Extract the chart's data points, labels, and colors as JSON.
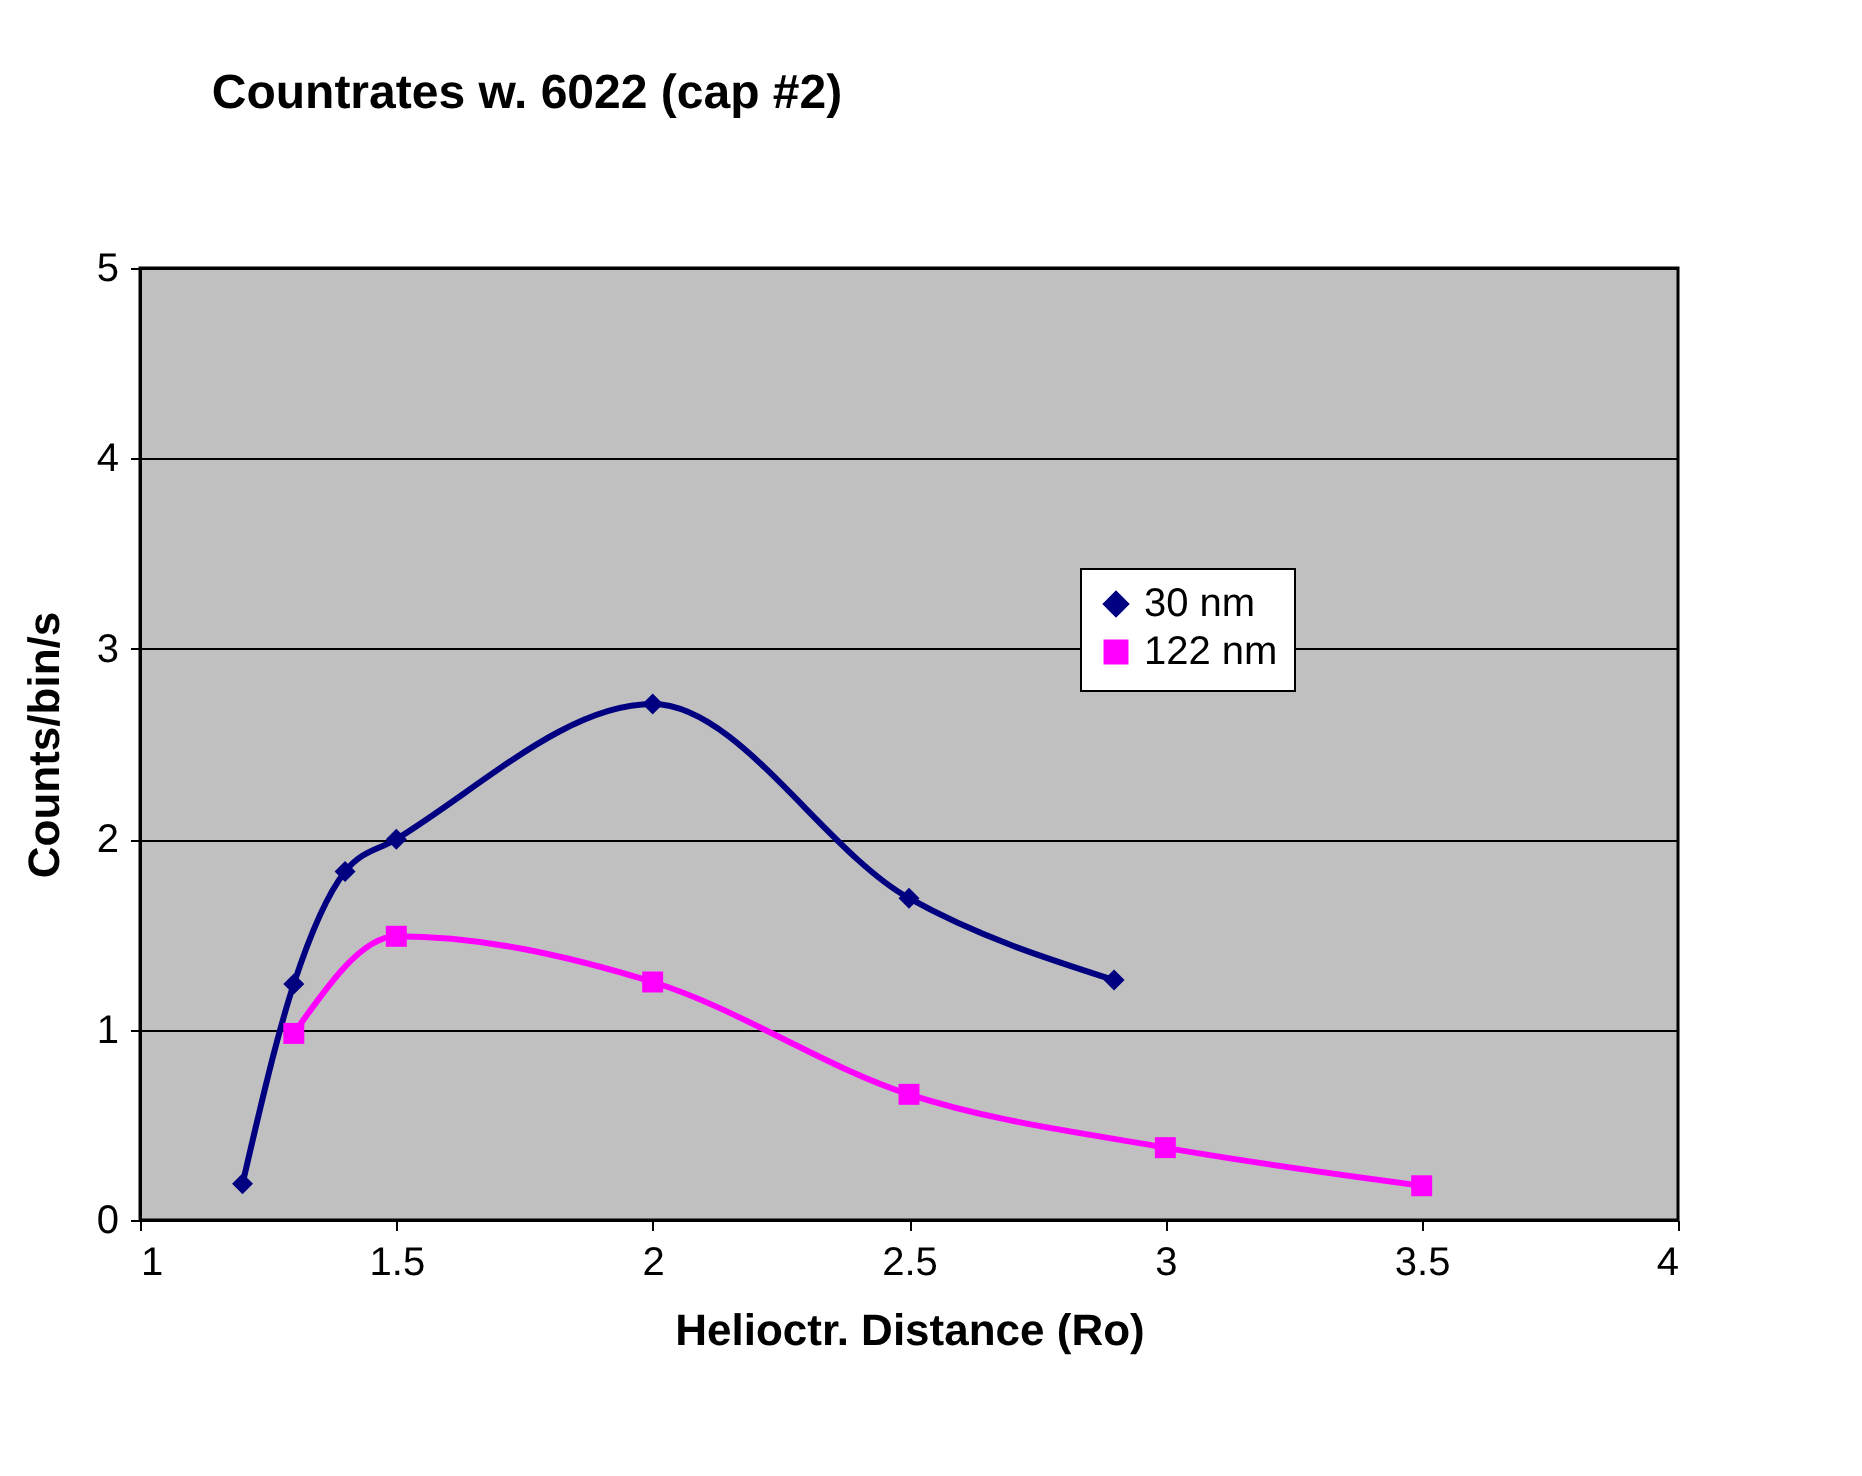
{
  "chart_data": {
    "type": "line",
    "title": "Countrates w. 6022 (cap #2)",
    "xlabel": "Helioctr. Distance (Ro)",
    "ylabel": "Counts/bin/s",
    "xlim": [
      1,
      4
    ],
    "xticks": [
      1,
      1.5,
      2,
      2.5,
      3,
      3.5,
      4
    ],
    "ylim": [
      0,
      5
    ],
    "yticks": [
      0,
      1,
      2,
      3,
      4,
      5
    ],
    "grid": "y",
    "legend": "right",
    "series": [
      {
        "name": "30 nm",
        "color": "#000080",
        "marker": "diamond",
        "x": [
          1.2,
          1.3,
          1.4,
          1.5,
          2.0,
          2.5,
          2.9
        ],
        "values": [
          0.19,
          1.24,
          1.83,
          2.0,
          2.71,
          1.69,
          1.26
        ]
      },
      {
        "name": "122 nm",
        "color": "#ff00ff",
        "marker": "square",
        "x": [
          1.3,
          1.5,
          2.0,
          2.5,
          3.0,
          3.5
        ],
        "values": [
          0.98,
          1.49,
          1.25,
          0.66,
          0.38,
          0.18
        ]
      }
    ]
  }
}
